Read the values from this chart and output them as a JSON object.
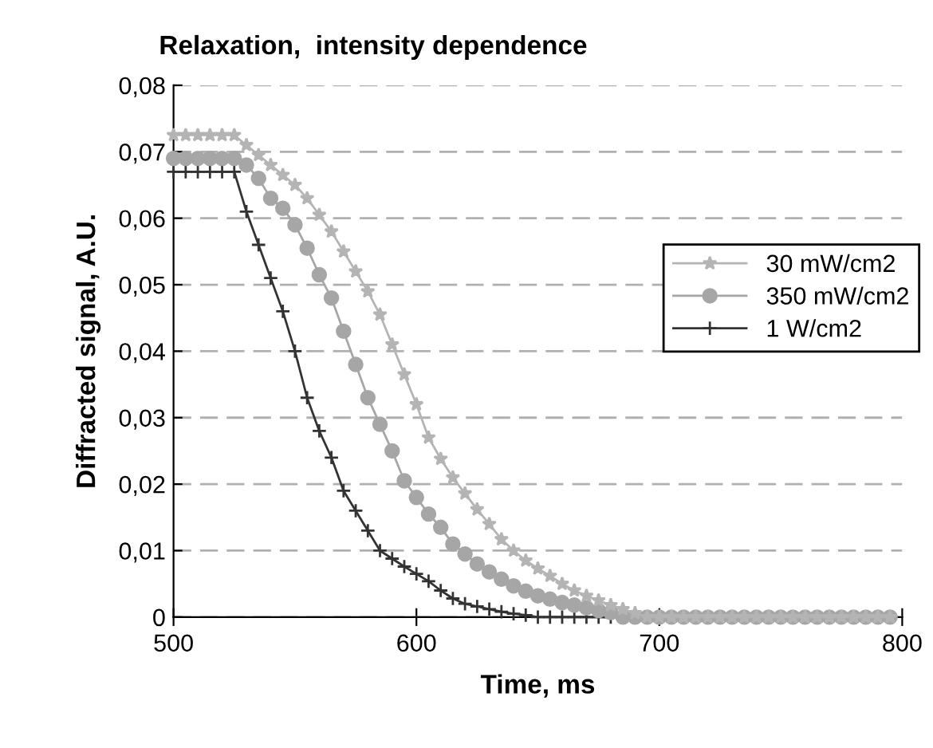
{
  "chart_data": {
    "type": "line",
    "title": "Relaxation,  intensity dependence",
    "xlabel": "Time, ms",
    "ylabel": "Diffracted signal, A.U.",
    "x": [
      500,
      505,
      510,
      515,
      520,
      525,
      530,
      535,
      540,
      545,
      550,
      555,
      560,
      565,
      570,
      575,
      580,
      585,
      590,
      595,
      600,
      605,
      610,
      615,
      620,
      625,
      630,
      635,
      640,
      645,
      650,
      655,
      660,
      665,
      670,
      675,
      680,
      685,
      690,
      695,
      700,
      705,
      710,
      715,
      720,
      725,
      730,
      735,
      740,
      745,
      750,
      755,
      760,
      765,
      770,
      775,
      780,
      785,
      790,
      795
    ],
    "series": [
      {
        "name": "30 mW/cm2",
        "color": "#b4b4b4",
        "marker": "star",
        "values": [
          0.0725,
          0.0725,
          0.0725,
          0.0725,
          0.0725,
          0.0725,
          0.071,
          0.0695,
          0.068,
          0.0665,
          0.065,
          0.063,
          0.0605,
          0.058,
          0.055,
          0.052,
          0.049,
          0.0455,
          0.041,
          0.0365,
          0.032,
          0.027,
          0.0238,
          0.021,
          0.0186,
          0.0162,
          0.014,
          0.0117,
          0.01,
          0.0085,
          0.0073,
          0.0062,
          0.005,
          0.004,
          0.0032,
          0.0025,
          0.0018,
          0.0012,
          0.0006,
          0,
          0,
          0,
          0,
          0,
          0,
          0,
          0,
          0,
          0,
          0,
          0,
          0,
          0,
          0,
          0,
          0,
          0,
          0,
          0,
          0
        ]
      },
      {
        "name": "350 mW/cm2",
        "color": "#a6a6a6",
        "marker": "circle",
        "values": [
          0.069,
          0.069,
          0.069,
          0.069,
          0.069,
          0.069,
          0.068,
          0.066,
          0.063,
          0.0615,
          0.059,
          0.0555,
          0.0515,
          0.048,
          0.043,
          0.038,
          0.033,
          0.029,
          0.025,
          0.0205,
          0.018,
          0.0155,
          0.0135,
          0.011,
          0.0095,
          0.008,
          0.0068,
          0.0057,
          0.0047,
          0.0039,
          0.0032,
          0.0027,
          0.0022,
          0.0018,
          0.0014,
          0.001,
          0.0007,
          0,
          0,
          0,
          0,
          0,
          0,
          0,
          0,
          0,
          0,
          0,
          0,
          0,
          0,
          0,
          0,
          0,
          0,
          0,
          0,
          0,
          0,
          0
        ]
      },
      {
        "name": "1 W/cm2",
        "color": "#333333",
        "marker": "cross",
        "values": [
          0.067,
          0.067,
          0.067,
          0.067,
          0.067,
          0.067,
          0.061,
          0.056,
          0.051,
          0.046,
          0.04,
          0.033,
          0.028,
          0.024,
          0.019,
          0.016,
          0.013,
          0.01,
          0.0088,
          0.0076,
          0.0065,
          0.0054,
          0.004,
          0.0028,
          0.002,
          0.0016,
          0.0012,
          0.0008,
          0.0005,
          0.0003,
          0,
          0,
          0,
          0,
          0,
          0,
          0,
          0,
          0,
          0,
          0,
          0,
          0,
          0,
          0,
          0,
          0,
          0,
          0,
          0,
          0,
          0,
          0,
          0,
          0,
          0,
          0,
          0,
          0,
          0
        ]
      }
    ],
    "xlim": [
      500,
      800
    ],
    "xticks": [
      500,
      600,
      700,
      800
    ],
    "ylim": [
      0,
      0.08
    ],
    "yticks": [
      0,
      {
        "value": 0.01,
        "label": "0,01"
      },
      {
        "value": 0.02,
        "label": "0,02"
      },
      {
        "value": 0.03,
        "label": "0,03"
      },
      {
        "value": 0.04,
        "label": "0,04"
      },
      {
        "value": 0.05,
        "label": "0,05"
      },
      {
        "value": 0.06,
        "label": "0,06"
      },
      {
        "value": 0.07,
        "label": "0,07"
      },
      {
        "value": 0.08,
        "label": "0,08"
      }
    ],
    "grid": "y",
    "legend": "right",
    "line_style": "solid"
  }
}
